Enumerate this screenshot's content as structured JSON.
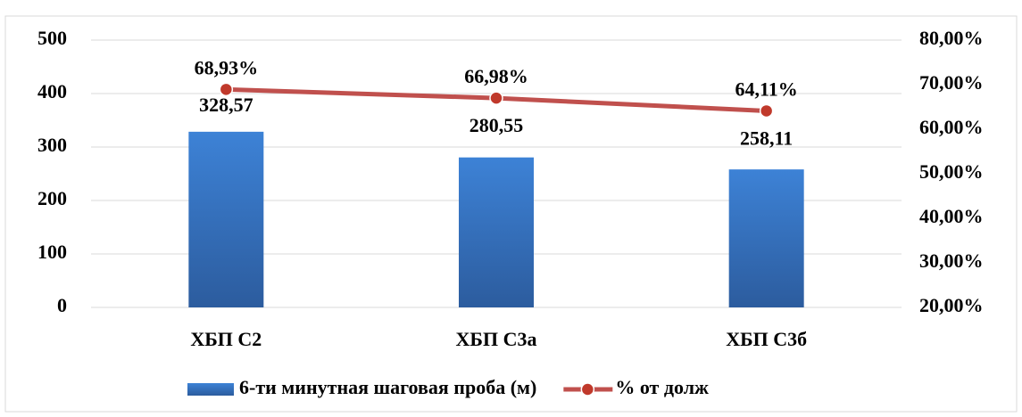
{
  "chart_data": {
    "type": "bar",
    "categories": [
      "ХБП  С2",
      "ХБП С3а",
      "ХБП С3б"
    ],
    "series": [
      {
        "name": "6-ти минутная шаговая проба (м)",
        "type": "bar",
        "color": "#3a7bc8",
        "axis": "y",
        "values": [
          328.57,
          280.55,
          258.11
        ],
        "value_labels": [
          "328,57",
          "280,55",
          "258,11"
        ]
      },
      {
        "name": "% от долж",
        "type": "line",
        "color": "#c0504d",
        "axis": "y2",
        "values": [
          68.93,
          66.98,
          64.11
        ],
        "value_labels": [
          "68,93%",
          "66,98%",
          "64,11%"
        ]
      }
    ],
    "ylim": [
      0,
      500
    ],
    "yticks": [
      0,
      100,
      200,
      300,
      400,
      500
    ],
    "y2lim": [
      20,
      80
    ],
    "y2ticks": [
      {
        "value": 20,
        "label": "20,00%"
      },
      {
        "value": 30,
        "label": "30,00%"
      },
      {
        "value": 40,
        "label": "40,00%"
      },
      {
        "value": 50,
        "label": "50,00%"
      },
      {
        "value": 60,
        "label": "60,00%"
      },
      {
        "value": 70,
        "label": "70,00%"
      },
      {
        "value": 80,
        "label": "80,00%"
      }
    ],
    "grid": true,
    "legend": "bottom"
  }
}
